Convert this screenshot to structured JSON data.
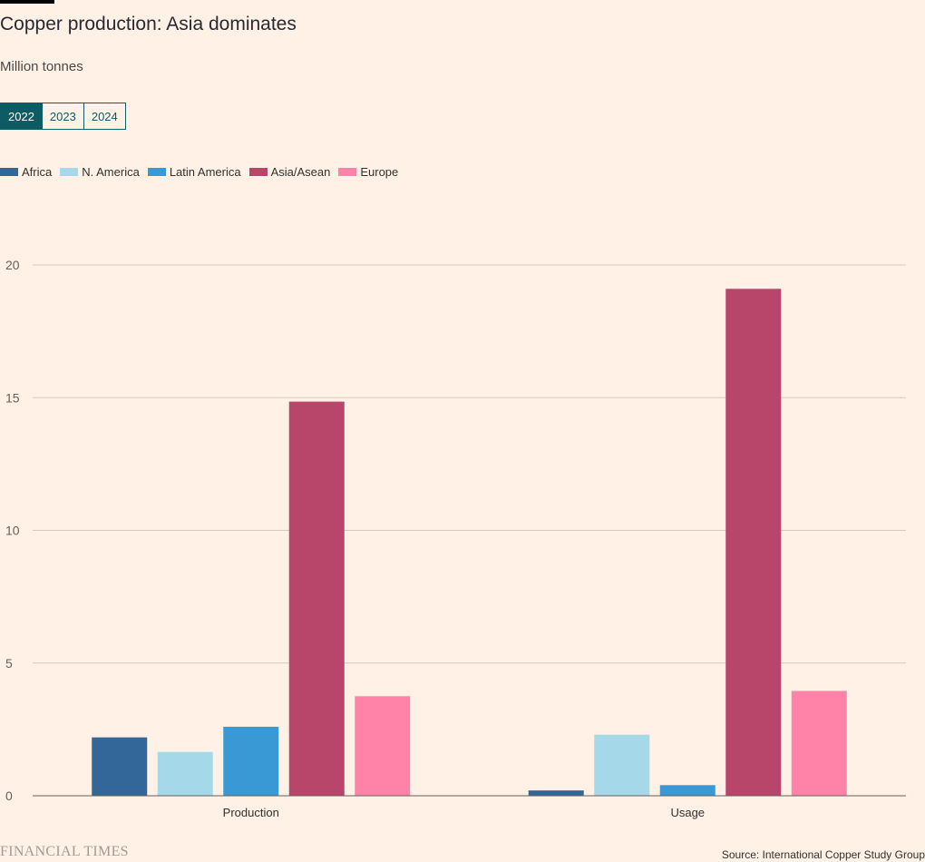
{
  "title": "Copper production: Asia dominates",
  "subtitle": "Million tonnes",
  "tabs": [
    {
      "label": "2022",
      "active": true
    },
    {
      "label": "2023",
      "active": false
    },
    {
      "label": "2024",
      "active": false
    }
  ],
  "source": "Source: International Copper Study Group",
  "brand": "FINANCIAL TIMES",
  "chart_data": {
    "type": "bar",
    "categories": [
      "Production",
      "Usage"
    ],
    "series": [
      {
        "name": "Africa",
        "color": "#336699",
        "values": [
          2.2,
          0.2
        ]
      },
      {
        "name": "N. America",
        "color": "#a5d8e8",
        "values": [
          1.65,
          2.3
        ]
      },
      {
        "name": "Latin America",
        "color": "#3899d4",
        "values": [
          2.6,
          0.4
        ]
      },
      {
        "name": "Asia/Asean",
        "color": "#b8466a",
        "values": [
          14.85,
          19.1
        ]
      },
      {
        "name": "Europe",
        "color": "#ff83a8",
        "values": [
          3.75,
          3.95
        ]
      }
    ],
    "y_ticks": [
      0,
      5,
      10,
      15,
      20
    ],
    "ylim": [
      0,
      20
    ],
    "grid": true,
    "legend_position": "top-left"
  }
}
